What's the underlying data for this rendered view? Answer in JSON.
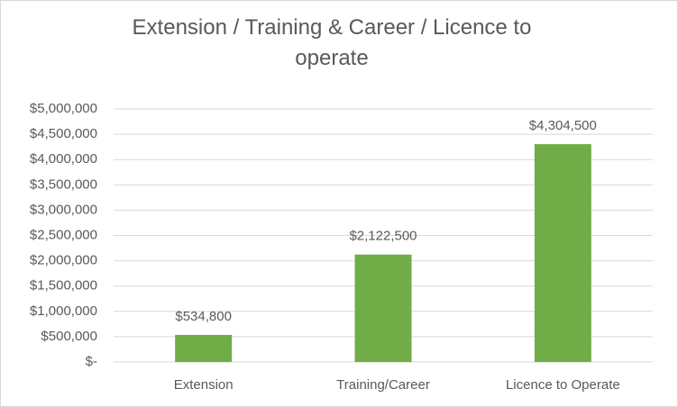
{
  "chart_data": {
    "type": "bar",
    "title": "Extension / Training & Career / Licence to operate",
    "categories": [
      "Extension",
      "Training/Career",
      "Licence to Operate"
    ],
    "values": [
      534800,
      2122500,
      4304500
    ],
    "value_labels": [
      "$534,800",
      "$2,122,500",
      "$4,304,500"
    ],
    "color": "#70ad47",
    "ylim": [
      0,
      5000000
    ],
    "yticks": [
      {
        "value": 0,
        "label": "$-"
      },
      {
        "value": 500000,
        "label": "$500,000"
      },
      {
        "value": 1000000,
        "label": "$1,000,000"
      },
      {
        "value": 1500000,
        "label": "$1,500,000"
      },
      {
        "value": 2000000,
        "label": "$2,000,000"
      },
      {
        "value": 2500000,
        "label": "$2,500,000"
      },
      {
        "value": 3000000,
        "label": "$3,000,000"
      },
      {
        "value": 3500000,
        "label": "$3,500,000"
      },
      {
        "value": 4000000,
        "label": "$4,000,000"
      },
      {
        "value": 4500000,
        "label": "$4,500,000"
      },
      {
        "value": 5000000,
        "label": "$5,000,000"
      }
    ],
    "grid": true
  }
}
